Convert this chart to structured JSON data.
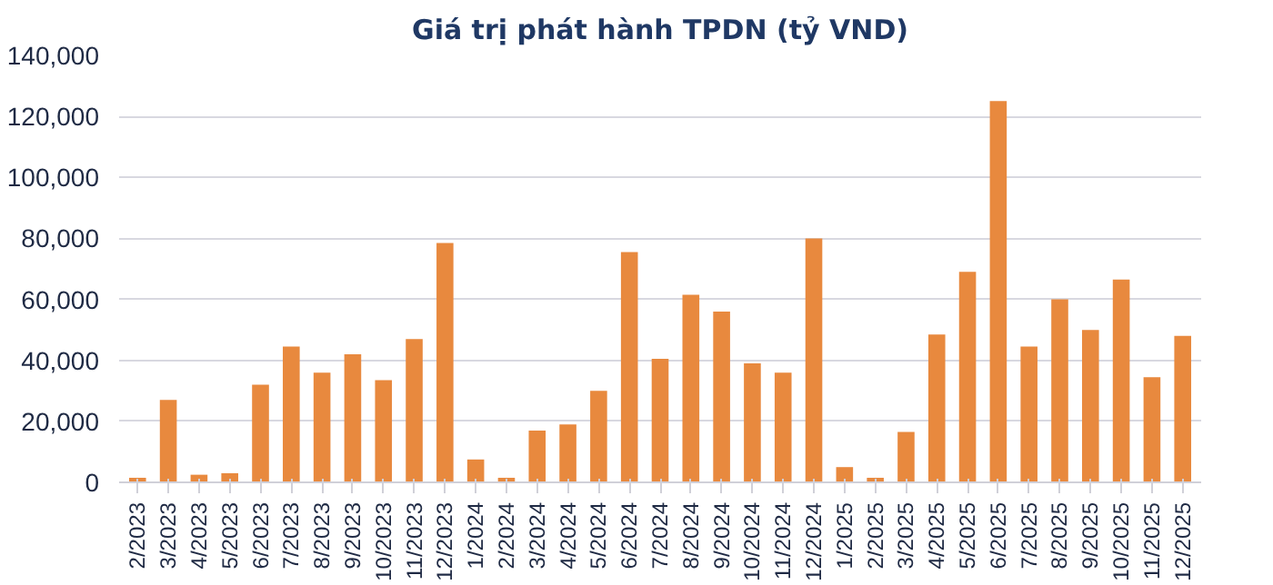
{
  "chart_data": {
    "type": "bar",
    "title": "Giá trị phát hành TPDN (tỷ VND)",
    "categories": [
      "2/2023",
      "3/2023",
      "4/2023",
      "5/2023",
      "6/2023",
      "7/2023",
      "8/2023",
      "9/2023",
      "10/2023",
      "11/2023",
      "12/2023",
      "1/2024",
      "2/2024",
      "3/2024",
      "4/2024",
      "5/2024",
      "6/2024",
      "7/2024",
      "8/2024",
      "9/2024",
      "10/2024",
      "11/2024",
      "12/2024",
      "1/2025",
      "2/2025",
      "3/2025",
      "4/2025",
      "5/2025",
      "6/2025",
      "7/2025",
      "8/2025",
      "9/2025",
      "10/2025",
      "11/2025",
      "12/2025"
    ],
    "values": [
      1500,
      27000,
      2500,
      3000,
      32000,
      44500,
      36000,
      42000,
      33500,
      47000,
      78500,
      7500,
      1500,
      17000,
      19000,
      30000,
      75500,
      40500,
      61500,
      56000,
      39000,
      36000,
      80000,
      5000,
      1500,
      16500,
      48500,
      69000,
      125000,
      44500,
      60000,
      50000,
      66500,
      34500,
      48000
    ],
    "color": "#e8893e",
    "ylim": [
      0,
      140000
    ],
    "yticks": [
      {
        "value": 0,
        "label": "0"
      },
      {
        "value": 20000,
        "label": "20,000"
      },
      {
        "value": 40000,
        "label": "40,000"
      },
      {
        "value": 60000,
        "label": "60,000"
      },
      {
        "value": 80000,
        "label": "80,000"
      },
      {
        "value": 100000,
        "label": "100,000"
      },
      {
        "value": 120000,
        "label": "120,000"
      },
      {
        "value": 140000,
        "label": "140,000"
      }
    ],
    "grid": "y"
  }
}
